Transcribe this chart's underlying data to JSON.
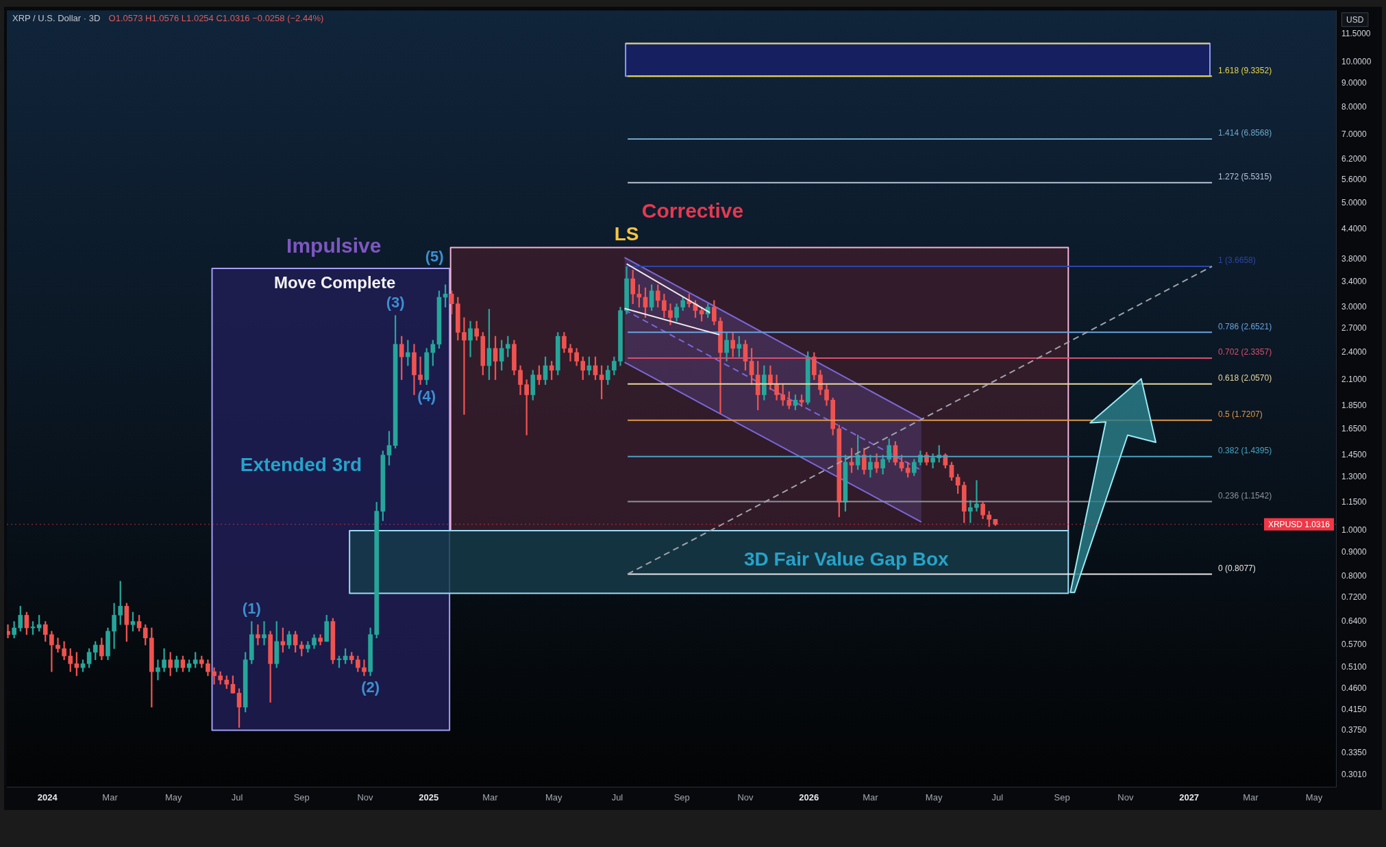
{
  "chart_data": {
    "type": "candlestick",
    "title": "XRP / U.S. Dollar · 3D",
    "subtitle": "O1.0573 H1.0576 L1.0254 C1.0316 −0.0258 (−2.44%)",
    "ylabel": "USD",
    "log": "y",
    "xlim": [
      "2023-11-23",
      "2027-05-22"
    ],
    "ylim": [
      0.284,
      12.9
    ],
    "xticks": [
      {
        "value": "2024-01-01",
        "label": "2024"
      },
      {
        "value": "2024-03-01",
        "label": "Mar"
      },
      {
        "value": "2024-05-01",
        "label": "May"
      },
      {
        "value": "2024-07-01",
        "label": "Jul"
      },
      {
        "value": "2024-09-01",
        "label": "Sep"
      },
      {
        "value": "2024-11-01",
        "label": "Nov"
      },
      {
        "value": "2025-01-01",
        "label": "2025"
      },
      {
        "value": "2025-03-01",
        "label": "Mar"
      },
      {
        "value": "2025-05-01",
        "label": "May"
      },
      {
        "value": "2025-07-01",
        "label": "Jul"
      },
      {
        "value": "2025-09-01",
        "label": "Sep"
      },
      {
        "value": "2025-11-01",
        "label": "Nov"
      },
      {
        "value": "2026-01-01",
        "label": "2026"
      },
      {
        "value": "2026-03-01",
        "label": "Mar"
      },
      {
        "value": "2026-05-01",
        "label": "May"
      },
      {
        "value": "2026-07-01",
        "label": "Jul"
      },
      {
        "value": "2026-09-01",
        "label": "Sep"
      },
      {
        "value": "2026-11-01",
        "label": "Nov"
      },
      {
        "value": "2027-01-01",
        "label": "2027"
      },
      {
        "value": "2027-03-01",
        "label": "Mar"
      },
      {
        "value": "2027-05-01",
        "label": "May"
      }
    ],
    "yticks": [
      {
        "value": 0.301,
        "label": "0.3010"
      },
      {
        "value": 0.335,
        "label": "0.3350"
      },
      {
        "value": 0.375,
        "label": "0.3750"
      },
      {
        "value": 0.415,
        "label": "0.4150"
      },
      {
        "value": 0.46,
        "label": "0.4600"
      },
      {
        "value": 0.51,
        "label": "0.5100"
      },
      {
        "value": 0.57,
        "label": "0.5700"
      },
      {
        "value": 0.64,
        "label": "0.6400"
      },
      {
        "value": 0.72,
        "label": "0.7200"
      },
      {
        "value": 0.8,
        "label": "0.8000"
      },
      {
        "value": 0.9,
        "label": "0.9000"
      },
      {
        "value": 1,
        "label": "1.0000"
      },
      {
        "value": 1.15,
        "label": "1.1500"
      },
      {
        "value": 1.3,
        "label": "1.3000"
      },
      {
        "value": 1.45,
        "label": "1.4500"
      },
      {
        "value": 1.65,
        "label": "1.6500"
      },
      {
        "value": 1.85,
        "label": "1.8500"
      },
      {
        "value": 2.1,
        "label": "2.1000"
      },
      {
        "value": 2.4,
        "label": "2.4000"
      },
      {
        "value": 2.7,
        "label": "2.7000"
      },
      {
        "value": 3,
        "label": "3.0000"
      },
      {
        "value": 3.4,
        "label": "3.4000"
      },
      {
        "value": 3.8,
        "label": "3.8000"
      },
      {
        "value": 4.4,
        "label": "4.4000"
      },
      {
        "value": 5,
        "label": "5.0000"
      },
      {
        "value": 5.6,
        "label": "5.6000"
      },
      {
        "value": 6.2,
        "label": "6.2000"
      },
      {
        "value": 7,
        "label": "7.0000"
      },
      {
        "value": 8,
        "label": "8.0000"
      },
      {
        "value": 9,
        "label": "9.0000"
      },
      {
        "value": 10,
        "label": "10.0000"
      },
      {
        "value": 11.5,
        "label": "11.5000"
      }
    ],
    "series": [
      {
        "type": "area",
        "x": [
          "2024-06-07",
          "2025-01-21",
          "2025-01-21",
          "2024-06-07",
          "2024-06-07"
        ],
        "values": [
          0.375,
          0.375,
          3.63,
          3.63,
          0.375
        ],
        "color": "#201d55"
      },
      {
        "type": "area",
        "x": [
          "2025-01-22",
          "2026-09-07",
          "2026-09-07",
          "2025-01-22",
          "2025-01-22"
        ],
        "values": [
          1.0,
          1.0,
          4.02,
          4.02,
          1.0
        ],
        "color": "#3a1d2c"
      },
      {
        "type": "area",
        "x": [
          "2024-10-17",
          "2026-09-07",
          "2026-09-07",
          "2024-10-17",
          "2024-10-17"
        ],
        "values": [
          0.735,
          0.735,
          1.0,
          1.0,
          0.735
        ],
        "color": "#173c4a"
      },
      {
        "type": "area",
        "x": [
          "2025-07-09",
          "2027-01-21",
          "2027-01-21",
          "2025-07-09",
          "2025-07-09"
        ],
        "values": [
          9.3352,
          9.3352,
          10.96,
          10.96,
          9.3352
        ],
        "color": "#18206a"
      },
      {
        "type": "line",
        "x": [
          "2025-07-08",
          "2026-04-19"
        ],
        "values": [
          3.83,
          1.734
        ],
        "color": "#7b68d9"
      },
      {
        "type": "line",
        "x": [
          "2025-07-08",
          "2026-04-19"
        ],
        "values": [
          2.288,
          1.043
        ],
        "color": "#7b68d9"
      },
      {
        "type": "line",
        "x": [
          "2025-07-08",
          "2026-04-19"
        ],
        "values": [
          2.96,
          1.345
        ],
        "lower": [
          2.288,
          1.043
        ],
        "upper": [
          3.83,
          1.734
        ],
        "color": "#7b68d9",
        "line_style": "dashed"
      },
      {
        "x": [
          "2023-11-24",
          "2023-11-30",
          "2023-12-06",
          "2023-12-12",
          "2023-12-18",
          "2023-12-24",
          "2023-12-30",
          "2024-01-05",
          "2024-01-11",
          "2024-01-17",
          "2024-01-23",
          "2024-01-29",
          "2024-02-04",
          "2024-02-10",
          "2024-02-16",
          "2024-02-22",
          "2024-02-28",
          "2024-03-05",
          "2024-03-11",
          "2024-03-17",
          "2024-03-23",
          "2024-03-29",
          "2024-04-04",
          "2024-04-10",
          "2024-04-16",
          "2024-04-22",
          "2024-04-28",
          "2024-05-04",
          "2024-05-10",
          "2024-05-16",
          "2024-05-22",
          "2024-05-28",
          "2024-06-03",
          "2024-06-09",
          "2024-06-15",
          "2024-06-21",
          "2024-06-27",
          "2024-07-03",
          "2024-07-09",
          "2024-07-15",
          "2024-07-21",
          "2024-07-27",
          "2024-08-02",
          "2024-08-08",
          "2024-08-14",
          "2024-08-20",
          "2024-08-26",
          "2024-09-01",
          "2024-09-07",
          "2024-09-13",
          "2024-09-19",
          "2024-09-25",
          "2024-10-01",
          "2024-10-07",
          "2024-10-13",
          "2024-10-19",
          "2024-10-25",
          "2024-10-31",
          "2024-11-06",
          "2024-11-12",
          "2024-11-18",
          "2024-11-24",
          "2024-11-30",
          "2024-12-06",
          "2024-12-12",
          "2024-12-18",
          "2024-12-24",
          "2024-12-30",
          "2025-01-05",
          "2025-01-11",
          "2025-01-17",
          "2025-01-23",
          "2025-01-29",
          "2025-02-04",
          "2025-02-10",
          "2025-02-16",
          "2025-02-22",
          "2025-02-28",
          "2025-03-06",
          "2025-03-12",
          "2025-03-18",
          "2025-03-24",
          "2025-03-30",
          "2025-04-05",
          "2025-04-11",
          "2025-04-17",
          "2025-04-23",
          "2025-04-29",
          "2025-05-05",
          "2025-05-11",
          "2025-05-17",
          "2025-05-23",
          "2025-05-29",
          "2025-06-04",
          "2025-06-10",
          "2025-06-16",
          "2025-06-22",
          "2025-06-28",
          "2025-07-04",
          "2025-07-10",
          "2025-07-16",
          "2025-07-22",
          "2025-07-28",
          "2025-08-03",
          "2025-08-09",
          "2025-08-15",
          "2025-08-21",
          "2025-08-27",
          "2025-09-02",
          "2025-09-08",
          "2025-09-14",
          "2025-09-20",
          "2025-09-26",
          "2025-10-02",
          "2025-10-08",
          "2025-10-14",
          "2025-10-20",
          "2025-10-26",
          "2025-11-01",
          "2025-11-07",
          "2025-11-13",
          "2025-11-19",
          "2025-11-25",
          "2025-12-01",
          "2025-12-07",
          "2025-12-13",
          "2025-12-19",
          "2025-12-25",
          "2025-12-31",
          "2026-01-06",
          "2026-01-12",
          "2026-01-18",
          "2026-01-24",
          "2026-01-30",
          "2026-02-05",
          "2026-02-11",
          "2026-02-17",
          "2026-02-23",
          "2026-03-01",
          "2026-03-07",
          "2026-03-13",
          "2026-03-19",
          "2026-03-25",
          "2026-03-31",
          "2026-04-06",
          "2026-04-12",
          "2026-04-18",
          "2026-04-24",
          "2026-04-30",
          "2026-05-06",
          "2026-05-12",
          "2026-05-18",
          "2026-05-24",
          "2026-05-30",
          "2026-06-05",
          "2026-06-11",
          "2026-06-17",
          "2026-06-23",
          "2026-06-29"
        ],
        "ohlc": [
          [
            0.61,
            0.63,
            0.59,
            0.6
          ],
          [
            0.6,
            0.64,
            0.59,
            0.62
          ],
          [
            0.62,
            0.69,
            0.61,
            0.66
          ],
          [
            0.66,
            0.67,
            0.6,
            0.62
          ],
          [
            0.62,
            0.64,
            0.6,
            0.62
          ],
          [
            0.62,
            0.66,
            0.61,
            0.63
          ],
          [
            0.63,
            0.64,
            0.58,
            0.6
          ],
          [
            0.6,
            0.61,
            0.5,
            0.57
          ],
          [
            0.57,
            0.59,
            0.55,
            0.56
          ],
          [
            0.56,
            0.58,
            0.53,
            0.54
          ],
          [
            0.54,
            0.56,
            0.5,
            0.52
          ],
          [
            0.52,
            0.55,
            0.49,
            0.51
          ],
          [
            0.51,
            0.53,
            0.5,
            0.52
          ],
          [
            0.52,
            0.56,
            0.51,
            0.55
          ],
          [
            0.55,
            0.58,
            0.53,
            0.57
          ],
          [
            0.57,
            0.59,
            0.53,
            0.54
          ],
          [
            0.54,
            0.62,
            0.53,
            0.61
          ],
          [
            0.61,
            0.7,
            0.56,
            0.66
          ],
          [
            0.66,
            0.78,
            0.63,
            0.69
          ],
          [
            0.69,
            0.7,
            0.58,
            0.63
          ],
          [
            0.63,
            0.67,
            0.61,
            0.64
          ],
          [
            0.64,
            0.66,
            0.61,
            0.62
          ],
          [
            0.62,
            0.63,
            0.57,
            0.59
          ],
          [
            0.59,
            0.62,
            0.42,
            0.5
          ],
          [
            0.5,
            0.53,
            0.48,
            0.51
          ],
          [
            0.51,
            0.56,
            0.5,
            0.53
          ],
          [
            0.53,
            0.55,
            0.49,
            0.51
          ],
          [
            0.51,
            0.54,
            0.5,
            0.53
          ],
          [
            0.53,
            0.54,
            0.5,
            0.51
          ],
          [
            0.51,
            0.53,
            0.5,
            0.52
          ],
          [
            0.52,
            0.55,
            0.51,
            0.53
          ],
          [
            0.53,
            0.54,
            0.51,
            0.52
          ],
          [
            0.52,
            0.53,
            0.49,
            0.5
          ],
          [
            0.5,
            0.51,
            0.47,
            0.49
          ],
          [
            0.49,
            0.5,
            0.47,
            0.48
          ],
          [
            0.48,
            0.49,
            0.46,
            0.47
          ],
          [
            0.47,
            0.49,
            0.45,
            0.45
          ],
          [
            0.45,
            0.46,
            0.38,
            0.42
          ],
          [
            0.42,
            0.55,
            0.41,
            0.53
          ],
          [
            0.53,
            0.64,
            0.52,
            0.6
          ],
          [
            0.6,
            0.63,
            0.57,
            0.59
          ],
          [
            0.59,
            0.64,
            0.57,
            0.6
          ],
          [
            0.6,
            0.61,
            0.43,
            0.52
          ],
          [
            0.52,
            0.64,
            0.51,
            0.58
          ],
          [
            0.58,
            0.62,
            0.55,
            0.57
          ],
          [
            0.57,
            0.61,
            0.56,
            0.6
          ],
          [
            0.6,
            0.61,
            0.55,
            0.57
          ],
          [
            0.57,
            0.58,
            0.54,
            0.56
          ],
          [
            0.56,
            0.58,
            0.55,
            0.57
          ],
          [
            0.57,
            0.6,
            0.56,
            0.59
          ],
          [
            0.59,
            0.6,
            0.57,
            0.58
          ],
          [
            0.58,
            0.66,
            0.58,
            0.64
          ],
          [
            0.64,
            0.65,
            0.52,
            0.53
          ],
          [
            0.53,
            0.54,
            0.51,
            0.53
          ],
          [
            0.53,
            0.56,
            0.52,
            0.54
          ],
          [
            0.54,
            0.55,
            0.52,
            0.53
          ],
          [
            0.53,
            0.54,
            0.5,
            0.51
          ],
          [
            0.51,
            0.53,
            0.49,
            0.5
          ],
          [
            0.5,
            0.62,
            0.49,
            0.6
          ],
          [
            0.6,
            1.15,
            0.59,
            1.1
          ],
          [
            1.1,
            1.48,
            1.05,
            1.45
          ],
          [
            1.45,
            1.63,
            1.38,
            1.52
          ],
          [
            1.52,
            2.88,
            1.5,
            2.5
          ],
          [
            2.5,
            2.6,
            2.1,
            2.35
          ],
          [
            2.35,
            2.55,
            2.25,
            2.4
          ],
          [
            2.4,
            2.5,
            1.95,
            2.15
          ],
          [
            2.15,
            2.35,
            2.05,
            2.1
          ],
          [
            2.1,
            2.45,
            2.05,
            2.4
          ],
          [
            2.4,
            2.55,
            2.25,
            2.5
          ],
          [
            2.5,
            3.25,
            2.45,
            3.15
          ],
          [
            3.15,
            3.35,
            3.0,
            3.2
          ],
          [
            3.2,
            3.25,
            2.9,
            3.05
          ],
          [
            3.05,
            3.15,
            2.55,
            2.65
          ],
          [
            2.65,
            2.85,
            1.77,
            2.55
          ],
          [
            2.55,
            2.8,
            2.35,
            2.7
          ],
          [
            2.7,
            2.8,
            2.55,
            2.6
          ],
          [
            2.6,
            2.65,
            2.15,
            2.25
          ],
          [
            2.25,
            2.97,
            2.1,
            2.45
          ],
          [
            2.45,
            2.6,
            2.1,
            2.3
          ],
          [
            2.3,
            2.55,
            2.2,
            2.45
          ],
          [
            2.45,
            2.6,
            2.35,
            2.5
          ],
          [
            2.5,
            2.55,
            2.15,
            2.2
          ],
          [
            2.2,
            2.25,
            1.95,
            2.05
          ],
          [
            2.05,
            2.1,
            1.6,
            1.95
          ],
          [
            1.95,
            2.2,
            1.9,
            2.15
          ],
          [
            2.15,
            2.25,
            2.05,
            2.1
          ],
          [
            2.1,
            2.35,
            2.05,
            2.25
          ],
          [
            2.25,
            2.3,
            2.1,
            2.2
          ],
          [
            2.2,
            2.65,
            2.15,
            2.6
          ],
          [
            2.6,
            2.65,
            2.4,
            2.45
          ],
          [
            2.45,
            2.5,
            2.3,
            2.4
          ],
          [
            2.4,
            2.45,
            2.25,
            2.3
          ],
          [
            2.3,
            2.35,
            2.1,
            2.2
          ],
          [
            2.2,
            2.35,
            2.15,
            2.25
          ],
          [
            2.25,
            2.35,
            2.1,
            2.15
          ],
          [
            2.15,
            2.25,
            1.91,
            2.1
          ],
          [
            2.1,
            2.25,
            2.05,
            2.2
          ],
          [
            2.2,
            2.35,
            2.15,
            2.3
          ],
          [
            2.3,
            3.0,
            2.25,
            2.95
          ],
          [
            2.95,
            3.66,
            2.9,
            3.45
          ],
          [
            3.45,
            3.6,
            3.05,
            3.2
          ],
          [
            3.2,
            3.35,
            3.0,
            3.15
          ],
          [
            3.15,
            3.3,
            2.85,
            3.0
          ],
          [
            3.0,
            3.35,
            2.95,
            3.25
          ],
          [
            3.25,
            3.35,
            3.0,
            3.1
          ],
          [
            3.1,
            3.2,
            2.85,
            2.95
          ],
          [
            2.95,
            3.05,
            2.75,
            2.85
          ],
          [
            2.85,
            3.05,
            2.8,
            3.0
          ],
          [
            3.0,
            3.15,
            2.95,
            3.1
          ],
          [
            3.1,
            3.2,
            3.0,
            3.05
          ],
          [
            3.05,
            3.1,
            2.85,
            2.95
          ],
          [
            2.95,
            3.0,
            2.8,
            2.9
          ],
          [
            2.9,
            3.05,
            2.85,
            3.0
          ],
          [
            3.0,
            3.1,
            2.75,
            2.8
          ],
          [
            2.8,
            2.85,
            1.78,
            2.4
          ],
          [
            2.4,
            2.65,
            2.3,
            2.55
          ],
          [
            2.55,
            2.65,
            2.35,
            2.45
          ],
          [
            2.45,
            2.6,
            2.35,
            2.5
          ],
          [
            2.5,
            2.55,
            2.2,
            2.3
          ],
          [
            2.3,
            2.45,
            2.05,
            2.15
          ],
          [
            2.15,
            2.3,
            1.81,
            1.95
          ],
          [
            1.95,
            2.25,
            1.9,
            2.15
          ],
          [
            2.15,
            2.25,
            2.0,
            2.05
          ],
          [
            2.05,
            2.15,
            1.9,
            1.95
          ],
          [
            1.95,
            2.05,
            1.85,
            1.9
          ],
          [
            1.9,
            1.98,
            1.82,
            1.85
          ],
          [
            1.85,
            1.95,
            1.81,
            1.9
          ],
          [
            1.9,
            1.95,
            1.84,
            1.88
          ],
          [
            1.88,
            2.41,
            1.86,
            2.35
          ],
          [
            2.35,
            2.4,
            2.1,
            2.15
          ],
          [
            2.15,
            2.2,
            1.95,
            2.0
          ],
          [
            2.0,
            2.05,
            1.85,
            1.9
          ],
          [
            1.9,
            1.92,
            1.6,
            1.65
          ],
          [
            1.65,
            1.68,
            1.07,
            1.15
          ],
          [
            1.15,
            1.45,
            1.1,
            1.4
          ],
          [
            1.4,
            1.5,
            1.33,
            1.38
          ],
          [
            1.38,
            1.6,
            1.35,
            1.45
          ],
          [
            1.45,
            1.5,
            1.32,
            1.35
          ],
          [
            1.35,
            1.45,
            1.3,
            1.4
          ],
          [
            1.4,
            1.46,
            1.33,
            1.36
          ],
          [
            1.36,
            1.45,
            1.32,
            1.42
          ],
          [
            1.42,
            1.57,
            1.4,
            1.52
          ],
          [
            1.52,
            1.55,
            1.38,
            1.4
          ],
          [
            1.4,
            1.45,
            1.34,
            1.36
          ],
          [
            1.36,
            1.4,
            1.3,
            1.33
          ],
          [
            1.33,
            1.42,
            1.31,
            1.4
          ],
          [
            1.4,
            1.48,
            1.38,
            1.45
          ],
          [
            1.45,
            1.47,
            1.38,
            1.4
          ],
          [
            1.4,
            1.46,
            1.36,
            1.43
          ],
          [
            1.43,
            1.52,
            1.4,
            1.45
          ],
          [
            1.45,
            1.46,
            1.36,
            1.38
          ],
          [
            1.38,
            1.4,
            1.28,
            1.3
          ],
          [
            1.3,
            1.32,
            1.2,
            1.25
          ],
          [
            1.25,
            1.27,
            1.04,
            1.1
          ],
          [
            1.1,
            1.16,
            1.04,
            1.12
          ],
          [
            1.12,
            1.28,
            1.1,
            1.14
          ],
          [
            1.14,
            1.15,
            1.06,
            1.08
          ],
          [
            1.08,
            1.1,
            1.02,
            1.0573
          ],
          [
            1.0573,
            1.0576,
            1.0254,
            1.0316
          ]
        ],
        "colors": [
          "#ef5350",
          "#26a69a",
          "#26a69a",
          "#ef5350",
          "#26a69a",
          "#26a69a",
          "#ef5350",
          "#ef5350",
          "#ef5350",
          "#ef5350",
          "#ef5350",
          "#ef5350",
          "#26a69a",
          "#26a69a",
          "#26a69a",
          "#ef5350",
          "#26a69a",
          "#26a69a",
          "#26a69a",
          "#ef5350",
          "#26a69a",
          "#ef5350",
          "#ef5350",
          "#ef5350",
          "#26a69a",
          "#26a69a",
          "#ef5350",
          "#26a69a",
          "#ef5350",
          "#26a69a",
          "#26a69a",
          "#ef5350",
          "#ef5350",
          "#ef5350",
          "#ef5350",
          "#ef5350",
          "#ef5350",
          "#ef5350",
          "#26a69a",
          "#26a69a",
          "#ef5350",
          "#26a69a",
          "#ef5350",
          "#26a69a",
          "#ef5350",
          "#26a69a",
          "#ef5350",
          "#ef5350",
          "#26a69a",
          "#26a69a",
          "#ef5350",
          "#26a69a",
          "#ef5350",
          "#26a69a",
          "#26a69a",
          "#ef5350",
          "#ef5350",
          "#ef5350",
          "#26a69a",
          "#26a69a",
          "#26a69a",
          "#26a69a",
          "#26a69a",
          "#ef5350",
          "#26a69a",
          "#ef5350",
          "#ef5350",
          "#26a69a",
          "#26a69a",
          "#26a69a",
          "#26a69a",
          "#ef5350",
          "#ef5350",
          "#ef5350",
          "#26a69a",
          "#ef5350",
          "#ef5350",
          "#26a69a",
          "#ef5350",
          "#26a69a",
          "#26a69a",
          "#ef5350",
          "#ef5350",
          "#ef5350",
          "#26a69a",
          "#ef5350",
          "#26a69a",
          "#ef5350",
          "#26a69a",
          "#ef5350",
          "#ef5350",
          "#ef5350",
          "#ef5350",
          "#26a69a",
          "#ef5350",
          "#ef5350",
          "#26a69a",
          "#26a69a",
          "#26a69a",
          "#26a69a",
          "#ef5350",
          "#ef5350",
          "#ef5350",
          "#26a69a",
          "#ef5350",
          "#ef5350",
          "#ef5350",
          "#26a69a",
          "#26a69a",
          "#ef5350",
          "#ef5350",
          "#ef5350",
          "#26a69a",
          "#ef5350",
          "#ef5350",
          "#26a69a",
          "#ef5350",
          "#26a69a",
          "#ef5350",
          "#ef5350",
          "#ef5350",
          "#26a69a",
          "#ef5350",
          "#ef5350",
          "#ef5350",
          "#ef5350",
          "#26a69a",
          "#ef5350",
          "#26a69a",
          "#ef5350",
          "#ef5350",
          "#ef5350",
          "#ef5350",
          "#ef5350",
          "#26a69a",
          "#ef5350",
          "#26a69a",
          "#ef5350",
          "#26a69a",
          "#ef5350",
          "#26a69a",
          "#26a69a",
          "#ef5350",
          "#ef5350",
          "#ef5350",
          "#26a69a",
          "#26a69a",
          "#ef5350",
          "#26a69a",
          "#26a69a",
          "#ef5350",
          "#ef5350",
          "#ef5350",
          "#ef5350",
          "#26a69a",
          "#26a69a",
          "#ef5350",
          "#ef5350",
          "#ef5350"
        ]
      },
      {
        "type": "line",
        "x": [
          "2025-07-09",
          "2027-01-21"
        ],
        "values": [
          10.96,
          10.96
        ],
        "color": "#e8d44d"
      },
      {
        "type": "line",
        "name": "1.618 (9.3352)",
        "x": [
          "2025-07-11",
          "2027-01-23"
        ],
        "values": [
          9.3352,
          9.3352
        ],
        "color": "#e8d44d"
      },
      {
        "type": "line",
        "name": "1.414 (6.8568)",
        "x": [
          "2025-07-11",
          "2027-01-23"
        ],
        "values": [
          6.8568,
          6.8568
        ],
        "color": "#6fa8c8"
      },
      {
        "type": "line",
        "name": "1.272 (5.5315)",
        "x": [
          "2025-07-11",
          "2027-01-23"
        ],
        "values": [
          5.5315,
          5.5315
        ],
        "color": "#b8c4d6"
      },
      {
        "type": "line",
        "name": "1 (3.6658)",
        "x": [
          "2025-07-11",
          "2027-01-23"
        ],
        "values": [
          3.6658,
          3.6658
        ],
        "color": "#2a46a8"
      },
      {
        "type": "line",
        "name": "0.786 (2.6521)",
        "x": [
          "2025-07-11",
          "2027-01-23"
        ],
        "values": [
          2.6521,
          2.6521
        ],
        "color": "#6aa5e0"
      },
      {
        "type": "line",
        "name": "0.702 (2.3357)",
        "x": [
          "2025-07-11",
          "2027-01-23"
        ],
        "values": [
          2.3357,
          2.3357
        ],
        "color": "#d9506e"
      },
      {
        "type": "line",
        "name": "0.618 (2.0570)",
        "x": [
          "2025-07-11",
          "2027-01-23"
        ],
        "values": [
          2.057,
          2.057
        ],
        "color": "#e8d8a0"
      },
      {
        "type": "line",
        "name": "0.5 (1.7207)",
        "x": [
          "2025-07-11",
          "2027-01-23"
        ],
        "values": [
          1.7207,
          1.7207
        ],
        "color": "#e0974a"
      },
      {
        "type": "line",
        "name": "0.382 (1.4395)",
        "x": [
          "2025-07-11",
          "2027-01-23"
        ],
        "values": [
          1.4395,
          1.4395
        ],
        "color": "#4aa3c0"
      },
      {
        "type": "line",
        "name": "0.236 (1.1542)",
        "x": [
          "2025-07-11",
          "2027-01-23"
        ],
        "values": [
          1.1542,
          1.1542
        ],
        "color": "#8d929c"
      },
      {
        "type": "line",
        "name": "0 (0.8077)",
        "x": [
          "2025-07-11",
          "2027-01-23"
        ],
        "values": [
          0.8077,
          0.8077
        ],
        "color": "#e6e6e6"
      },
      {
        "type": "line",
        "x": [
          "2025-07-11",
          "2027-01-23"
        ],
        "values": [
          0.8077,
          3.6658
        ],
        "color": "#a0a4ad",
        "line_style": "dashed"
      },
      {
        "type": "line",
        "x": [
          "2025-07-10",
          "2025-09-28"
        ],
        "values": [
          3.71,
          2.92
        ],
        "color": "#f2e8ee"
      },
      {
        "type": "line",
        "x": [
          "2025-07-08",
          "2025-10-07"
        ],
        "values": [
          2.98,
          2.62
        ],
        "color": "#f2e8ee"
      },
      {
        "type": "area",
        "x": [
          "2026-09-09",
          "2026-10-13",
          "2026-09-28",
          "2026-11-16",
          "2026-11-30",
          "2026-11-03",
          "2026-09-13",
          "2026-09-09"
        ],
        "values": [
          0.738,
          1.706,
          1.699,
          2.11,
          1.544,
          1.599,
          0.738,
          0.738
        ],
        "color": "#2b7f8a"
      }
    ],
    "ref_lines": [
      {
        "axis": "y",
        "value": 1.0316,
        "label": "XRPUSD 1.0316",
        "color": "#f23645",
        "line_style": "dotted"
      }
    ],
    "annotations": [
      "Impulsive",
      "Move Complete",
      "Corrective",
      {
        "text": "LS",
        "x": "2025-07-10",
        "y": 3.66
      },
      "Extended 3rd",
      {
        "text": "(1)",
        "x": "2024-07-15",
        "y": 0.64
      },
      {
        "text": "(2)",
        "x": "2024-11-06",
        "y": 0.49
      },
      {
        "text": "(3)",
        "x": "2024-11-30",
        "y": 2.88
      },
      {
        "text": "(4)",
        "x": "2024-12-30",
        "y": 2.05
      },
      {
        "text": "(5)",
        "x": "2025-01-17",
        "y": 3.35
      },
      "3D Fair Value Gap Box"
    ]
  }
}
